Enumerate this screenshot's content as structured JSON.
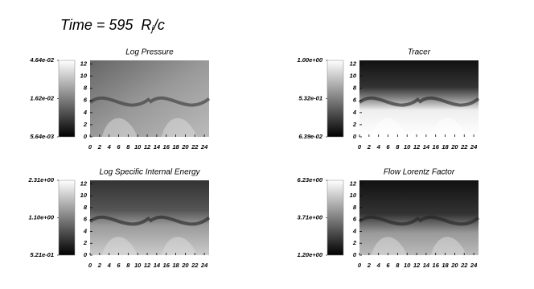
{
  "title": {
    "prefix": "Time = 595",
    "var": "R",
    "sub": "j",
    "suffix": "/c"
  },
  "chart_data": [
    {
      "type": "heatmap",
      "title": "Log Pressure",
      "xlim": [
        0,
        25
      ],
      "xticks": [
        0,
        2,
        4,
        6,
        8,
        10,
        12,
        14,
        16,
        18,
        20,
        22,
        24
      ],
      "ylim": [
        0,
        12.6
      ],
      "yticks": [
        0,
        2,
        4,
        6,
        8,
        10,
        12
      ],
      "colorbar_lim": [
        0.00564,
        0.0464
      ],
      "colorbar_log": true,
      "colorbar_ticks": [
        {
          "value": 0.0464,
          "label": "4.64e-02"
        },
        {
          "value": 0.0162,
          "label": "1.62e-02"
        },
        {
          "value": 0.00564,
          "label": "5.64e-03"
        }
      ]
    },
    {
      "type": "heatmap",
      "title": "Tracer",
      "xlim": [
        0,
        25
      ],
      "xticks": [
        0,
        2,
        4,
        6,
        8,
        10,
        12,
        14,
        16,
        18,
        20,
        22,
        24
      ],
      "ylim": [
        0,
        12.6
      ],
      "yticks": [
        0,
        2,
        4,
        6,
        8,
        10,
        12
      ],
      "colorbar_lim": [
        0.0639,
        1.0
      ],
      "colorbar_log": false,
      "colorbar_ticks": [
        {
          "value": 1.0,
          "label": "1.00e+00"
        },
        {
          "value": 0.532,
          "label": "5.32e-01"
        },
        {
          "value": 0.0639,
          "label": "6.39e-02"
        }
      ]
    },
    {
      "type": "heatmap",
      "title": "Log Specific Internal Energy",
      "xlim": [
        0,
        25
      ],
      "xticks": [
        0,
        2,
        4,
        6,
        8,
        10,
        12,
        14,
        16,
        18,
        20,
        22,
        24
      ],
      "ylim": [
        0,
        12.6
      ],
      "yticks": [
        0,
        2,
        4,
        6,
        8,
        10,
        12
      ],
      "colorbar_lim": [
        0.521,
        2.31
      ],
      "colorbar_log": true,
      "colorbar_ticks": [
        {
          "value": 2.31,
          "label": "2.31e+00"
        },
        {
          "value": 1.1,
          "label": "1.10e+00"
        },
        {
          "value": 0.521,
          "label": "5.21e-01"
        }
      ]
    },
    {
      "type": "heatmap",
      "title": "Flow Lorentz Factor",
      "xlim": [
        0,
        25
      ],
      "xticks": [
        0,
        2,
        4,
        6,
        8,
        10,
        12,
        14,
        16,
        18,
        20,
        22,
        24
      ],
      "ylim": [
        0,
        12.6
      ],
      "yticks": [
        0,
        2,
        4,
        6,
        8,
        10,
        12
      ],
      "colorbar_lim": [
        1.2,
        6.23
      ],
      "colorbar_log": false,
      "colorbar_ticks": [
        {
          "value": 6.23,
          "label": "6.23e+00"
        },
        {
          "value": 3.71,
          "label": "3.71e+00"
        },
        {
          "value": 1.2,
          "label": "1.20e+00"
        }
      ]
    }
  ]
}
